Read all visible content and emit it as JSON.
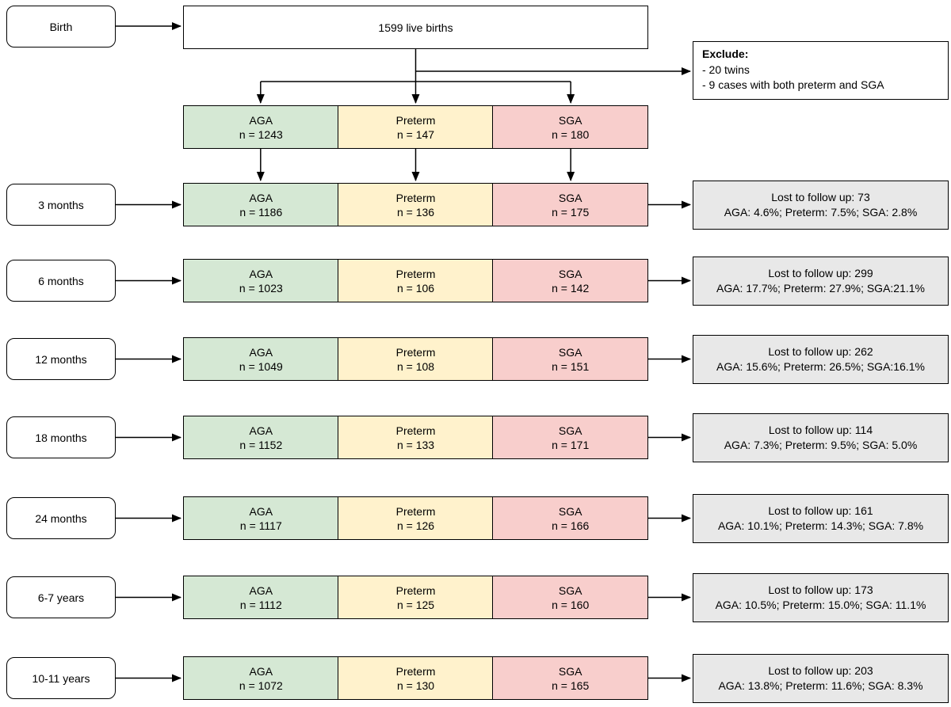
{
  "diagram": {
    "birth": {
      "label": "Birth"
    },
    "top_box": {
      "label": "1599 live births"
    },
    "exclude": {
      "heading": "Exclude:",
      "items": [
        "- 20 twins",
        "- 9 cases with both preterm and SGA"
      ]
    },
    "baseline": {
      "groups": [
        {
          "name": "AGA",
          "n_label": "n = 1243"
        },
        {
          "name": "Preterm",
          "n_label": "n = 147"
        },
        {
          "name": "SGA",
          "n_label": "n = 180"
        }
      ]
    },
    "rows": [
      {
        "label": "3 months",
        "groups": [
          {
            "name": "AGA",
            "n_label": "n = 1186"
          },
          {
            "name": "Preterm",
            "n_label": "n = 136"
          },
          {
            "name": "SGA",
            "n_label": "n = 175"
          }
        ],
        "lost": {
          "line1": "Lost to follow up: 73",
          "line2": "AGA: 4.6%; Preterm: 7.5%; SGA: 2.8%"
        }
      },
      {
        "label": "6 months",
        "groups": [
          {
            "name": "AGA",
            "n_label": "n = 1023"
          },
          {
            "name": "Preterm",
            "n_label": "n = 106"
          },
          {
            "name": "SGA",
            "n_label": "n = 142"
          }
        ],
        "lost": {
          "line1": "Lost to follow up: 299",
          "line2": "AGA: 17.7%; Preterm: 27.9%; SGA:21.1%"
        }
      },
      {
        "label": "12 months",
        "groups": [
          {
            "name": "AGA",
            "n_label": "n = 1049"
          },
          {
            "name": "Preterm",
            "n_label": "n = 108"
          },
          {
            "name": "SGA",
            "n_label": "n = 151"
          }
        ],
        "lost": {
          "line1": "Lost to follow up: 262",
          "line2": "AGA: 15.6%; Preterm: 26.5%; SGA:16.1%"
        }
      },
      {
        "label": "18 months",
        "groups": [
          {
            "name": "AGA",
            "n_label": "n = 1152"
          },
          {
            "name": "Preterm",
            "n_label": "n = 133"
          },
          {
            "name": "SGA",
            "n_label": "n = 171"
          }
        ],
        "lost": {
          "line1": "Lost to follow up: 114",
          "line2": "AGA: 7.3%; Preterm: 9.5%; SGA: 5.0%"
        }
      },
      {
        "label": "24 months",
        "groups": [
          {
            "name": "AGA",
            "n_label": "n = 1117"
          },
          {
            "name": "Preterm",
            "n_label": "n = 126"
          },
          {
            "name": "SGA",
            "n_label": "n = 166"
          }
        ],
        "lost": {
          "line1": "Lost to follow up: 161",
          "line2": "AGA: 10.1%; Preterm: 14.3%; SGA: 7.8%"
        }
      },
      {
        "label": "6-7 years",
        "groups": [
          {
            "name": "AGA",
            "n_label": "n = 1112"
          },
          {
            "name": "Preterm",
            "n_label": "n = 125"
          },
          {
            "name": "SGA",
            "n_label": "n = 160"
          }
        ],
        "lost": {
          "line1": "Lost to follow up: 173",
          "line2": "AGA: 10.5%; Preterm: 15.0%; SGA: 11.1%"
        }
      },
      {
        "label": "10-11 years",
        "groups": [
          {
            "name": "AGA",
            "n_label": "n = 1072"
          },
          {
            "name": "Preterm",
            "n_label": "n = 130"
          },
          {
            "name": "SGA",
            "n_label": "n = 165"
          }
        ],
        "lost": {
          "line1": "Lost to follow up: 203",
          "line2": "AGA: 13.8%; Preterm: 11.6%; SGA: 8.3%"
        }
      }
    ],
    "colors": {
      "aga_fill": "#d5e8d4",
      "preterm_fill": "#fff2cc",
      "sga_fill": "#f8cecc",
      "lost_fill": "#e8e8e8",
      "box_fill": "#ffffff",
      "box_border": "#000000",
      "arrow": "#000000"
    }
  }
}
